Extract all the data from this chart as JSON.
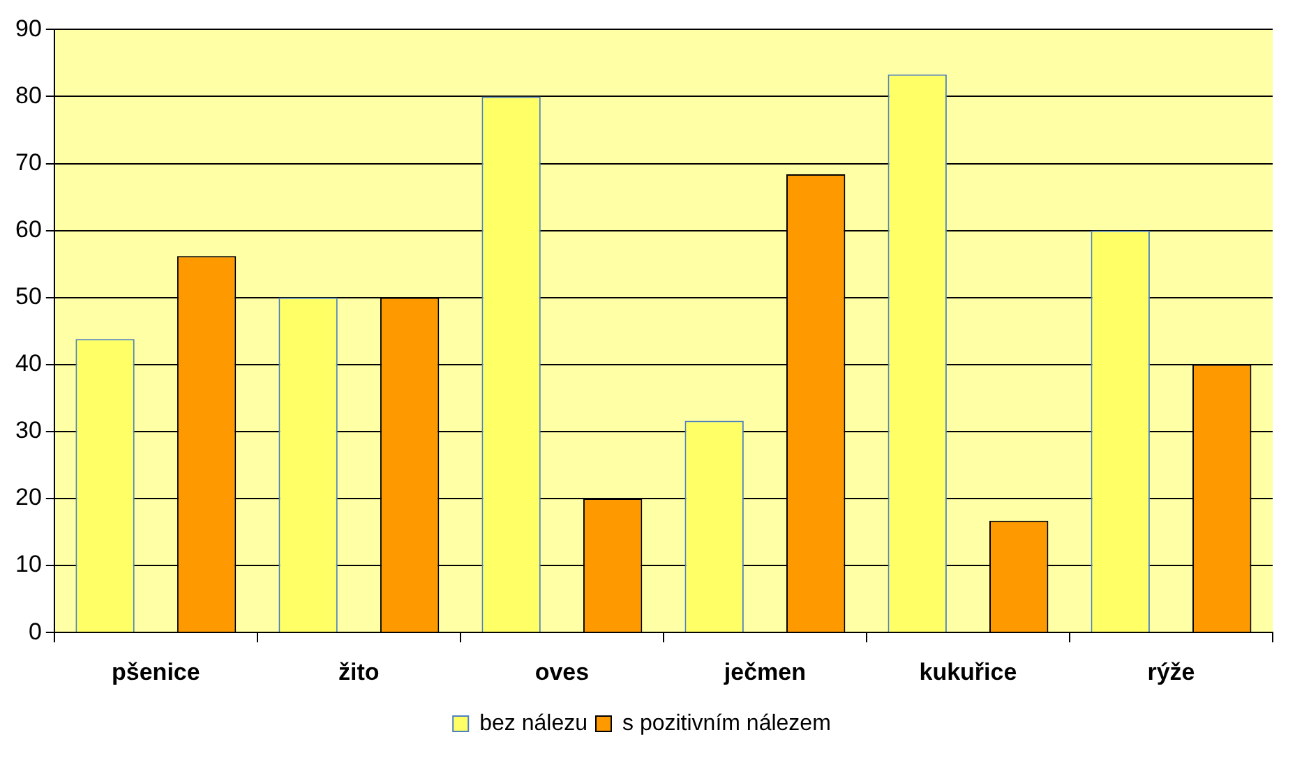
{
  "chart_data": {
    "type": "bar",
    "categories": [
      "pšenice",
      "žito",
      "oves",
      "ječmen",
      "kukuřice",
      "rýže"
    ],
    "series": [
      {
        "name": "bez nálezu",
        "color": "#ffff66",
        "values": [
          43.8,
          50,
          80,
          31.6,
          83.3,
          60
        ]
      },
      {
        "name": "s pozitivním nálezem",
        "color": "#ff9900",
        "values": [
          56.2,
          50,
          20,
          68.4,
          16.7,
          40
        ]
      }
    ],
    "ylim": [
      0,
      90
    ],
    "yticks": [
      0,
      10,
      20,
      30,
      40,
      50,
      60,
      70,
      80,
      90
    ],
    "grid": "y",
    "legend": "bottom"
  }
}
